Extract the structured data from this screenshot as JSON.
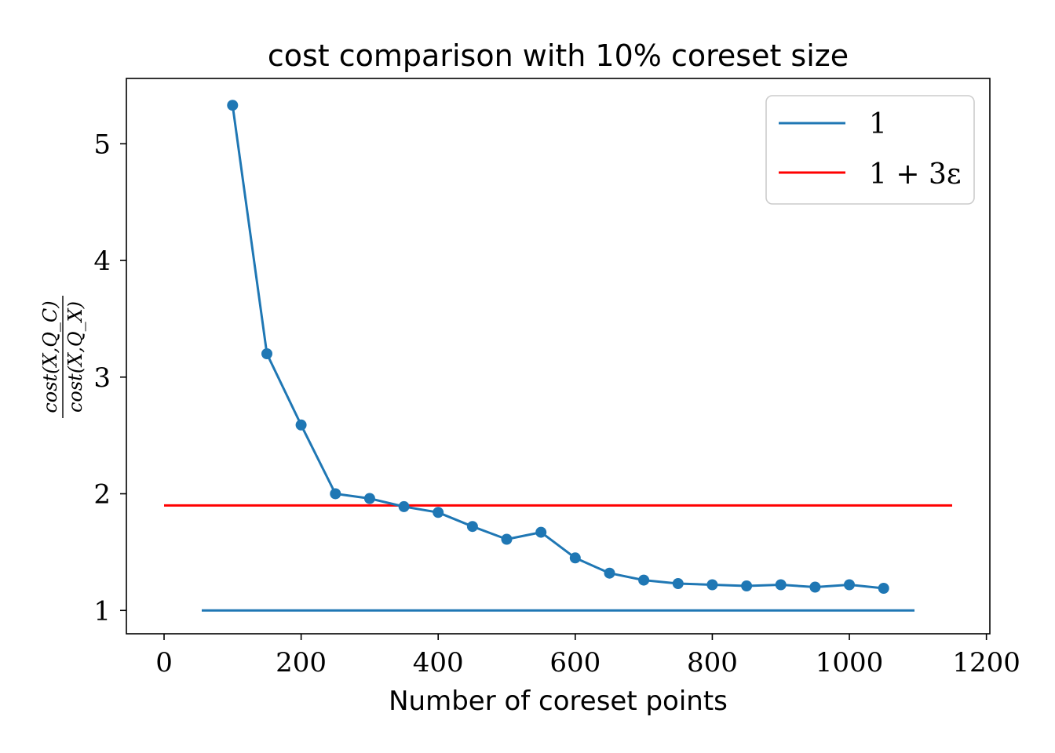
{
  "chart_data": {
    "type": "line",
    "title": "cost comparison with 10% coreset size",
    "xlabel": "Number of coreset points",
    "ylabel": {
      "numerator": "cost(X,Q_C)",
      "denominator": "cost(X,Q_X)"
    },
    "xlim": [
      -55,
      1205
    ],
    "ylim": [
      0.8,
      5.56
    ],
    "xticks": [
      0,
      200,
      400,
      600,
      800,
      1000,
      1200
    ],
    "yticks": [
      1,
      2,
      3,
      4,
      5
    ],
    "series": [
      {
        "name": "1",
        "kind": "line",
        "color": "#1f77b4",
        "x": [
          55,
          1095
        ],
        "y": [
          1.0,
          1.0
        ]
      },
      {
        "name": "1 + 3ε",
        "kind": "line",
        "color": "#ff0000",
        "x": [
          0,
          1150
        ],
        "y": [
          1.9,
          1.9
        ]
      },
      {
        "kind": "line-markers",
        "color": "#1f77b4",
        "x": [
          100,
          150,
          200,
          250,
          300,
          350,
          400,
          450,
          500,
          550,
          600,
          650,
          700,
          750,
          800,
          850,
          900,
          950,
          1000,
          1050
        ],
        "y": [
          5.33,
          3.2,
          2.59,
          2.0,
          1.96,
          1.89,
          1.84,
          1.72,
          1.61,
          1.67,
          1.45,
          1.32,
          1.26,
          1.23,
          1.22,
          1.21,
          1.22,
          1.2,
          1.22,
          1.19
        ]
      }
    ],
    "legend": {
      "position": "top-right",
      "entries": [
        "1",
        "1 + 3ε"
      ]
    },
    "grid": false
  }
}
